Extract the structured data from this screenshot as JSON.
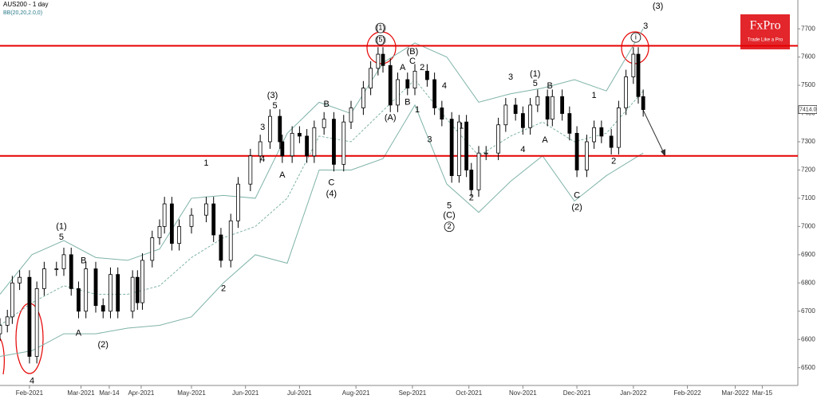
{
  "chart_data": {
    "type": "candlestick",
    "title": "AUS200 - 1 day",
    "subtitle": "BB(20,20,2.0,0)",
    "logo": {
      "title": "FxPro",
      "subtitle": "Trade Like a Pro"
    },
    "xlim": [
      0,
      325
    ],
    "xticks": [
      {
        "value": 12,
        "label": "Feb-2021"
      },
      {
        "value": 33,
        "label": "Mar-2021"
      },
      {
        "value": 44.5,
        "label": "Mar-14"
      },
      {
        "value": 57.5,
        "label": "Apr-2021"
      },
      {
        "value": 78,
        "label": "May-2021"
      },
      {
        "value": 100,
        "label": "Jun-2021"
      },
      {
        "value": 122,
        "label": "Jul-2021"
      },
      {
        "value": 145,
        "label": "Aug-2021"
      },
      {
        "value": 168,
        "label": "Sep-2021"
      },
      {
        "value": 191,
        "label": "Oct-2021"
      },
      {
        "value": 213,
        "label": "Nov-2021"
      },
      {
        "value": 235,
        "label": "Dec-2021"
      },
      {
        "value": 258,
        "label": "Jan-2022"
      },
      {
        "value": 280,
        "label": "Feb-2022"
      },
      {
        "value": 299.5,
        "label": "Mar-2022"
      },
      {
        "value": 310.5,
        "label": "Mar-15"
      }
    ],
    "ylim": [
      6437,
      7802
    ],
    "yticks": [
      6500,
      6600,
      6700,
      6800,
      6900,
      7000,
      7100,
      7200,
      7300,
      7400,
      7500,
      7600,
      7700
    ],
    "x": [
      0,
      3,
      5,
      8,
      12,
      15,
      18,
      23,
      26,
      29,
      32,
      35,
      39,
      42,
      45,
      48,
      54,
      56,
      58,
      62,
      65,
      67,
      70,
      73,
      78,
      84,
      87,
      90,
      94,
      97,
      102,
      106,
      110,
      114,
      115,
      119,
      122,
      125,
      128,
      132,
      136,
      140,
      143,
      148,
      151,
      154,
      156,
      159,
      162,
      166,
      169,
      174,
      177,
      180,
      184,
      187,
      190,
      192,
      195,
      198,
      203,
      206,
      210,
      213,
      216,
      219,
      223,
      225,
      229,
      232,
      235,
      239,
      242,
      245,
      249,
      252,
      255,
      258,
      260,
      262
    ],
    "open": [
      6620,
      6650,
      6680,
      6800,
      6820,
      6540,
      6780,
      6850,
      6850,
      6900,
      6780,
      6700,
      6850,
      6720,
      6700,
      6830,
      6700,
      6820,
      6730,
      6880,
      6960,
      7000,
      7080,
      6940,
      7000,
      7040,
      7080,
      6970,
      6880,
      7020,
      7150,
      7250,
      7300,
      7390,
      7300,
      7250,
      7330,
      7320,
      7250,
      7350,
      7380,
      7220,
      7370,
      7420,
      7490,
      7560,
      7610,
      7570,
      7430,
      7520,
      7490,
      7550,
      7520,
      7420,
      7380,
      7180,
      7370,
      7200,
      7130,
      7260,
      7260,
      7360,
      7430,
      7400,
      7350,
      7430,
      7460,
      7380,
      7460,
      7400,
      7330,
      7200,
      7300,
      7350,
      7320,
      7280,
      7420,
      7530,
      7610,
      7460
    ],
    "high": [
      6675,
      6705,
      6825,
      6845,
      6845,
      6805,
      6875,
      6875,
      6925,
      6925,
      6805,
      6875,
      6875,
      6745,
      6855,
      6855,
      6845,
      6845,
      6905,
      6985,
      7025,
      7105,
      7105,
      7025,
      7065,
      7105,
      7105,
      6995,
      7045,
      7175,
      7275,
      7325,
      7415,
      7415,
      7325,
      7355,
      7355,
      7345,
      7375,
      7405,
      7405,
      7395,
      7445,
      7515,
      7585,
      7635,
      7635,
      7595,
      7545,
      7545,
      7575,
      7575,
      7545,
      7445,
      7405,
      7395,
      7395,
      7225,
      7285,
      7285,
      7385,
      7455,
      7455,
      7425,
      7455,
      7485,
      7485,
      7485,
      7485,
      7425,
      7355,
      7325,
      7375,
      7375,
      7345,
      7445,
      7555,
      7635,
      7635,
      7485
    ],
    "low": [
      6595,
      6625,
      6655,
      6775,
      6515,
      6515,
      6755,
      6825,
      6825,
      6755,
      6675,
      6675,
      6695,
      6675,
      6675,
      6675,
      6675,
      6705,
      6705,
      6855,
      6935,
      6975,
      6915,
      6915,
      6975,
      7015,
      6945,
      6855,
      6855,
      6995,
      7125,
      7225,
      7275,
      7275,
      7225,
      7225,
      7295,
      7225,
      7225,
      7325,
      7195,
      7195,
      7345,
      7395,
      7465,
      7535,
      7545,
      7405,
      7405,
      7465,
      7465,
      7495,
      7395,
      7355,
      7155,
      7155,
      7175,
      7105,
      7105,
      7235,
      7235,
      7335,
      7375,
      7325,
      7325,
      7405,
      7355,
      7355,
      7375,
      7305,
      7175,
      7175,
      7275,
      7295,
      7255,
      7255,
      7395,
      7505,
      7435,
      7389
    ],
    "close": [
      6650,
      6680,
      6800,
      6820,
      6540,
      6780,
      6850,
      6850,
      6900,
      6780,
      6700,
      6850,
      6720,
      6700,
      6830,
      6700,
      6820,
      6730,
      6880,
      6960,
      7000,
      7080,
      6940,
      7000,
      7040,
      7080,
      6970,
      6880,
      7020,
      7150,
      7250,
      7300,
      7390,
      7300,
      7250,
      7330,
      7320,
      7250,
      7350,
      7380,
      7220,
      7370,
      7420,
      7490,
      7560,
      7610,
      7570,
      7430,
      7520,
      7490,
      7550,
      7520,
      7420,
      7380,
      7180,
      7370,
      7200,
      7130,
      7260,
      7260,
      7360,
      7430,
      7400,
      7350,
      7430,
      7460,
      7380,
      7460,
      7400,
      7330,
      7200,
      7300,
      7350,
      7320,
      7280,
      7420,
      7530,
      7610,
      7460,
      7414
    ],
    "up_color": "#ffffff",
    "down_color": "#000000",
    "last_price": {
      "value": 7414,
      "label": "7414.00"
    },
    "bands": {
      "color": "#7fb3a8",
      "x": [
        0,
        13,
        26,
        39,
        52,
        65,
        78,
        91,
        104,
        117,
        130,
        143,
        156,
        169,
        182,
        195,
        208,
        221,
        234,
        247,
        262
      ],
      "series": [
        {
          "values": [
            6760,
            6900,
            6950,
            6890,
            6880,
            6920,
            7100,
            7110,
            7100,
            7330,
            7440,
            7400,
            7580,
            7650,
            7600,
            7440,
            7470,
            7490,
            7520,
            7480,
            7700
          ]
        },
        {
          "values": [
            6650,
            6730,
            6790,
            6760,
            6760,
            6790,
            6890,
            6960,
            7000,
            7100,
            7320,
            7300,
            7410,
            7520,
            7380,
            7250,
            7320,
            7370,
            7300,
            7330,
            7480
          ]
        },
        {
          "values": [
            6540,
            6560,
            6620,
            6620,
            6640,
            6650,
            6680,
            6800,
            6900,
            6870,
            7200,
            7200,
            7240,
            7430,
            7150,
            7050,
            7160,
            7250,
            7090,
            7180,
            7260
          ]
        }
      ]
    },
    "levels": {
      "color": "#e60000",
      "values": [
        7640,
        7250
      ]
    },
    "annotations": [
      {
        "text": "(1)",
        "x": 155,
        "y": 7703,
        "circled": true
      },
      {
        "text": "(5)",
        "x": 155,
        "y": 7660,
        "circled": true
      },
      {
        "text": "i",
        "x": 259,
        "y": 7669,
        "circled": true
      },
      {
        "text": "3",
        "x": 263,
        "y": 7708
      },
      {
        "text": "(3)",
        "x": 268,
        "y": 7779
      },
      {
        "text": "(B)",
        "x": 168,
        "y": 7618
      },
      {
        "text": "A",
        "x": 164,
        "y": 7562
      },
      {
        "text": "C",
        "x": 168,
        "y": 7584
      },
      {
        "text": "2",
        "x": 172,
        "y": 7562
      },
      {
        "text": "B",
        "x": 166,
        "y": 7440
      },
      {
        "text": "(A)",
        "x": 159,
        "y": 7384
      },
      {
        "text": "1",
        "x": 170,
        "y": 7412
      },
      {
        "text": "4",
        "x": 181,
        "y": 7497
      },
      {
        "text": "3",
        "x": 175,
        "y": 7307
      },
      {
        "text": "1",
        "x": 188,
        "y": 7355
      },
      {
        "text": "5",
        "x": 183,
        "y": 7073
      },
      {
        "text": "(C)",
        "x": 183,
        "y": 7039
      },
      {
        "text": "2",
        "x": 183,
        "y": 6999,
        "circled": true
      },
      {
        "text": "2",
        "x": 192,
        "y": 7101
      },
      {
        "text": "(1)",
        "x": 218,
        "y": 7539
      },
      {
        "text": "5",
        "x": 218,
        "y": 7505
      },
      {
        "text": "3",
        "x": 208,
        "y": 7528
      },
      {
        "text": "B",
        "x": 224,
        "y": 7497
      },
      {
        "text": "A",
        "x": 222,
        "y": 7305
      },
      {
        "text": "4",
        "x": 213,
        "y": 7271
      },
      {
        "text": "C",
        "x": 235,
        "y": 7110
      },
      {
        "text": "(2)",
        "x": 235,
        "y": 7067
      },
      {
        "text": "2",
        "x": 250,
        "y": 7231
      },
      {
        "text": "1",
        "x": 242,
        "y": 7463
      },
      {
        "text": "(3)",
        "x": 111,
        "y": 7463
      },
      {
        "text": "5",
        "x": 112,
        "y": 7426
      },
      {
        "text": "3",
        "x": 107,
        "y": 7350
      },
      {
        "text": "4",
        "x": 107,
        "y": 7237
      },
      {
        "text": "A",
        "x": 115,
        "y": 7181
      },
      {
        "text": "B",
        "x": 133,
        "y": 7432
      },
      {
        "text": "C",
        "x": 135,
        "y": 7155
      },
      {
        "text": "(4)",
        "x": 135,
        "y": 7115
      },
      {
        "text": "1",
        "x": 84,
        "y": 7223
      },
      {
        "text": "2",
        "x": 91,
        "y": 6779
      },
      {
        "text": "(1)",
        "x": 25,
        "y": 6999
      },
      {
        "text": "5",
        "x": 25,
        "y": 6962
      },
      {
        "text": "B",
        "x": 34,
        "y": 6878
      },
      {
        "text": "A",
        "x": 32,
        "y": 6621
      },
      {
        "text": "(2)",
        "x": 42,
        "y": 6581
      },
      {
        "text": "4",
        "x": 13,
        "y": 6452
      }
    ]
  }
}
